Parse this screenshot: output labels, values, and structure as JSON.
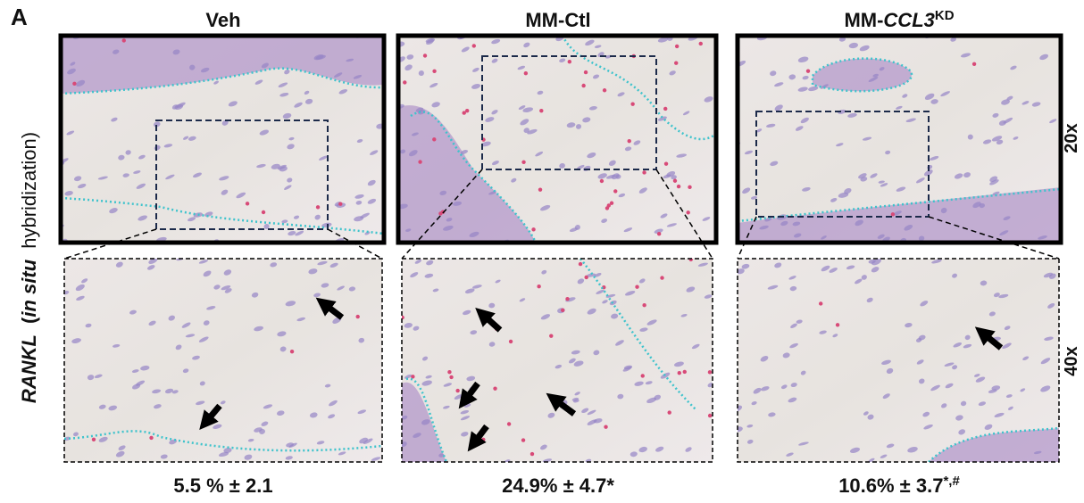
{
  "panel_label": "A",
  "y_axis_label": {
    "gene": "RANKL",
    "open": "(",
    "method": "in situ",
    "rest": "hybridization)"
  },
  "row_labels": [
    "20x",
    "40x"
  ],
  "columns": [
    {
      "title": "Veh",
      "caption": "5.5 % ± 2.1"
    },
    {
      "title": "MM-Ctl",
      "caption": "24.9% ± 4.7*"
    },
    {
      "title": "MM-",
      "title_italic": "CCL3",
      "title_superscript": "KD",
      "caption": "10.6% ± 3.7",
      "caption_superscript": "*,#"
    }
  ]
}
